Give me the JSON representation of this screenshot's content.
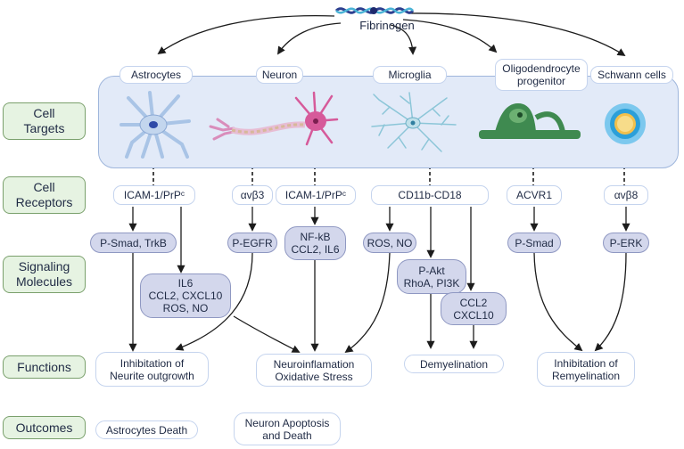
{
  "title": "Fibrinogen",
  "side_labels": {
    "cell_targets": "Cell\nTargets",
    "cell_receptors": "Cell\nReceptors",
    "signaling_molecules": "Signaling\nMolecules",
    "functions": "Functions",
    "outcomes": "Outcomes"
  },
  "cells": {
    "astrocytes": "Astrocytes",
    "neuron": "Neuron",
    "microglia": "Microglia",
    "opc": "Oligodendrocyte\nprogenitor",
    "schwann": "Schwann cells"
  },
  "receptors": {
    "icam_prp_astro": "ICAM-1/PrPᶜ",
    "avb3": "αvβ3",
    "icam_prp_neuron": "ICAM-1/PrPᶜ",
    "cd11b": "CD11b-CD18",
    "acvr1": "ACVR1",
    "avb8": "αvβ8"
  },
  "signals": {
    "psmad_trkb": "P-Smad, TrkB",
    "il6_group": "IL6\nCCL2, CXCL10\nROS, NO",
    "pegfr": "P-EGFR",
    "nfkb": "NF-kB\nCCL2, IL6",
    "ros_no": "ROS, NO",
    "pakt": "P-Akt\nRhoA, PI3K",
    "ccl2_cxcl10": "CCL2\nCXCL10",
    "psmad": "P-Smad",
    "perk": "P-ERK"
  },
  "functions": {
    "inhib_neurite": "Inhibitation of\nNeurite outgrowth",
    "neuroinflam": "Neuroinflamation\nOxidative Stress",
    "demyelination": "Demyelination",
    "inhib_remyel": "Inhibitation of\nRemyelination"
  },
  "outcomes": {
    "astro_death": "Astrocytes Death",
    "neuron_apoptosis": "Neuron Apoptosis\nand Death"
  },
  "colors": {
    "panel": "#e2eaf8",
    "signal_fill": "#d3d7ec",
    "side_label_fill": "#e6f3e2",
    "astrocyte": "#a9c4e6",
    "neuron": "#d65a9a",
    "microglia": "#8cc6d8",
    "opc": "#3f8a50",
    "schwann": "#2b9fd9"
  },
  "icons": [
    "fibrinogen-molecule-icon",
    "astrocyte-icon",
    "neuron-icon",
    "microglia-icon",
    "oligodendrocyte-icon",
    "schwann-cell-icon"
  ]
}
